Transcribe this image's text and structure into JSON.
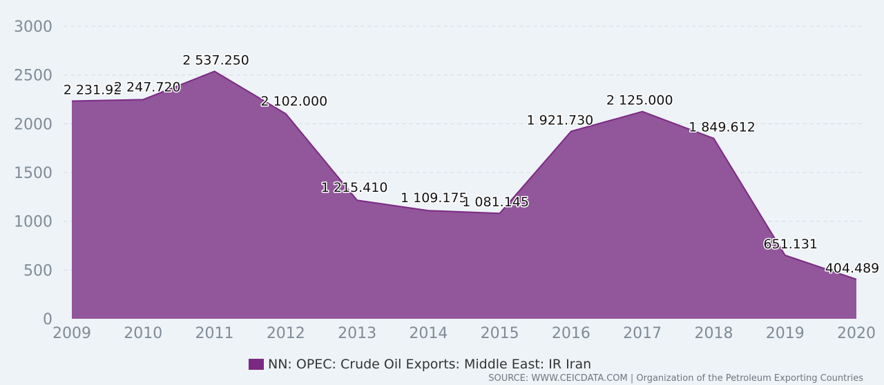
{
  "chart_data": {
    "type": "area",
    "title": "",
    "xlabel": "",
    "ylabel": "",
    "categories": [
      "2009",
      "2010",
      "2011",
      "2012",
      "2013",
      "2014",
      "2015",
      "2016",
      "2017",
      "2018",
      "2019",
      "2020"
    ],
    "series": [
      {
        "name": "NN: OPEC: Crude Oil Exports: Middle East: IR Iran",
        "values": [
          2231.92,
          2247.72,
          2537.25,
          2102.0,
          1215.41,
          1109.175,
          1081.145,
          1921.73,
          2125.0,
          1849.612,
          651.131,
          404.489
        ],
        "labels": [
          "2 231.92",
          "2 247.720",
          "2 537.250",
          "2 102.000",
          "1 215.410",
          "1 109.175",
          "1 081.145",
          "1 921.730",
          "2 125.000",
          "1 849.612",
          "651.131",
          "404.489"
        ]
      }
    ],
    "ylim": [
      0,
      3000
    ],
    "yticks": [
      0,
      500,
      1000,
      1500,
      2000,
      2500,
      3000
    ],
    "ytick_labels": [
      "0",
      "500",
      "1000",
      "1500",
      "2000",
      "2500",
      "3000"
    ],
    "grid": true,
    "legend": "bottom-center"
  },
  "colors": {
    "area_fill": "#92569b",
    "area_line": "#7b2a83",
    "grid": "#d4dbe2",
    "background": "#eef3f7"
  },
  "legend": {
    "label": "NN: OPEC: Crude Oil Exports: Middle East: IR Iran"
  },
  "source": "SOURCE: WWW.CEICDATA.COM | Organization of the Petroleum Exporting Countries"
}
